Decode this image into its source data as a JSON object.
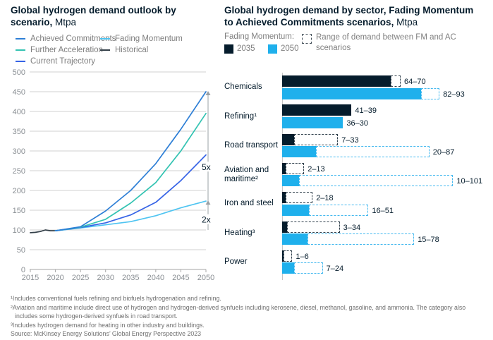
{
  "left_panel": {
    "title_bold": "Global hydrogen demand outlook by scenario,",
    "title_unit": " Mtpa",
    "legend": [
      {
        "label": "Achieved Commitments",
        "color": "#2E7FD6"
      },
      {
        "label": "Further Acceleration",
        "color": "#33C3B2"
      },
      {
        "label": "Current Trajectory",
        "color": "#3663E6"
      },
      {
        "label": "Fading Momentum",
        "color": "#4FC4F1"
      },
      {
        "label": "Historical",
        "color": "#333F48"
      }
    ]
  },
  "right_panel": {
    "title_bold": "Global hydrogen demand by sector, Fading Momentum to Achieved Commitments scenarios,",
    "title_unit": " Mtpa",
    "legend": {
      "group_label": "Fading Momentum:",
      "items": [
        {
          "label": "2035",
          "color": "#051C2C"
        },
        {
          "label": "2050",
          "color": "#1FB0EC"
        }
      ],
      "range_icon": "dashed-box-icon",
      "range_label": "Range of demand between FM and AC scenarios"
    }
  },
  "chart_data": [
    {
      "type": "line",
      "title": "Global hydrogen demand outlook by scenario",
      "ylabel": "Mtpa",
      "ylim": [
        0,
        500
      ],
      "yticks": [
        0,
        50,
        100,
        150,
        200,
        250,
        300,
        350,
        400,
        450,
        500
      ],
      "xticks": [
        2015,
        2020,
        2025,
        2030,
        2035,
        2040,
        2045,
        2050
      ],
      "grid": true,
      "series": [
        {
          "name": "Historical",
          "color": "#333F48",
          "points": [
            [
              2015,
              93
            ],
            [
              2016,
              94
            ],
            [
              2017,
              96
            ],
            [
              2018,
              100
            ],
            [
              2019,
              98
            ],
            [
              2020,
              98
            ]
          ]
        },
        {
          "name": "Fading Momentum",
          "color": "#4FC4F1",
          "points": [
            [
              2020,
              98
            ],
            [
              2025,
              105
            ],
            [
              2030,
              113
            ],
            [
              2035,
              121
            ],
            [
              2040,
              136
            ],
            [
              2045,
              156
            ],
            [
              2050,
              173
            ]
          ]
        },
        {
          "name": "Current Trajectory",
          "color": "#3663E6",
          "points": [
            [
              2020,
              98
            ],
            [
              2025,
              106
            ],
            [
              2030,
              118
            ],
            [
              2035,
              138
            ],
            [
              2040,
              170
            ],
            [
              2045,
              225
            ],
            [
              2050,
              290
            ]
          ]
        },
        {
          "name": "Further Acceleration",
          "color": "#33C3B2",
          "points": [
            [
              2020,
              98
            ],
            [
              2025,
              107
            ],
            [
              2030,
              127
            ],
            [
              2035,
              168
            ],
            [
              2040,
              220
            ],
            [
              2045,
              300
            ],
            [
              2050,
              395
            ]
          ]
        },
        {
          "name": "Achieved Commitments",
          "color": "#2E7FD6",
          "points": [
            [
              2020,
              98
            ],
            [
              2025,
              108
            ],
            [
              2030,
              148
            ],
            [
              2035,
              200
            ],
            [
              2040,
              268
            ],
            [
              2045,
              355
            ],
            [
              2050,
              450
            ]
          ]
        }
      ],
      "annotations": [
        {
          "label": "5x",
          "arrow_to_value": 450,
          "label_value": 255
        },
        {
          "label": "2x",
          "arrow_to_value": 173,
          "label_value": 122
        }
      ]
    },
    {
      "type": "bar",
      "title": "Global hydrogen demand by sector, Fading Momentum to Achieved Commitments scenarios",
      "unit": "Mtpa",
      "orientation": "horizontal",
      "series_names": [
        "2035",
        "2050"
      ],
      "sectors": [
        {
          "name": "Chemicals",
          "y2035": {
            "fm": 64,
            "ac": 70,
            "label": "64–70"
          },
          "y2050": {
            "fm": 82,
            "ac": 93,
            "label": "82–93"
          }
        },
        {
          "name": "Refining¹",
          "y2035": {
            "fm": 41,
            "ac": 39,
            "label": "41–39"
          },
          "y2050": {
            "fm": 36,
            "ac": 30,
            "label": "36–30"
          }
        },
        {
          "name": "Road transport",
          "y2035": {
            "fm": 7,
            "ac": 33,
            "label": "7–33"
          },
          "y2050": {
            "fm": 20,
            "ac": 87,
            "label": "20–87"
          }
        },
        {
          "name": "Aviation and maritime²",
          "y2035": {
            "fm": 2,
            "ac": 13,
            "label": "2–13"
          },
          "y2050": {
            "fm": 10,
            "ac": 101,
            "label": "10–101"
          }
        },
        {
          "name": "Iron and steel",
          "y2035": {
            "fm": 2,
            "ac": 18,
            "label": "2–18"
          },
          "y2050": {
            "fm": 16,
            "ac": 51,
            "label": "16–51"
          }
        },
        {
          "name": "Heating³",
          "y2035": {
            "fm": 3,
            "ac": 34,
            "label": "3–34"
          },
          "y2050": {
            "fm": 15,
            "ac": 78,
            "label": "15–78"
          }
        },
        {
          "name": "Power",
          "y2035": {
            "fm": 1,
            "ac": 6,
            "label": "1–6"
          },
          "y2050": {
            "fm": 7,
            "ac": 24,
            "label": "7–24"
          }
        }
      ]
    }
  ],
  "footnotes": [
    "¹Includes conventional fuels refining and biofuels hydrogenation and refining.",
    "²Aviation and maritime include direct use of hydrogen and hydrogen-derived synfuels including kerosene, diesel, methanol, gasoline, and ammonia. The category also includes some hydrogen-derived synfuels in road transport.",
    "³Includes hydrogen demand for heating in other industry and buildings.",
    "Source: McKinsey Energy Solutions’ Global Energy Perspective 2023"
  ],
  "colors": {
    "text_dark": "#051C2C",
    "text_gray": "#7f7f7f",
    "grid": "#d2d2d2",
    "axis": "#a6a6a6",
    "bar_2035": "#051C2C",
    "bar_2050": "#1FB0EC",
    "range_2035_border": "#31414d",
    "range_2050_border": "#45B9EF",
    "bracket": "#9aa0a4"
  }
}
